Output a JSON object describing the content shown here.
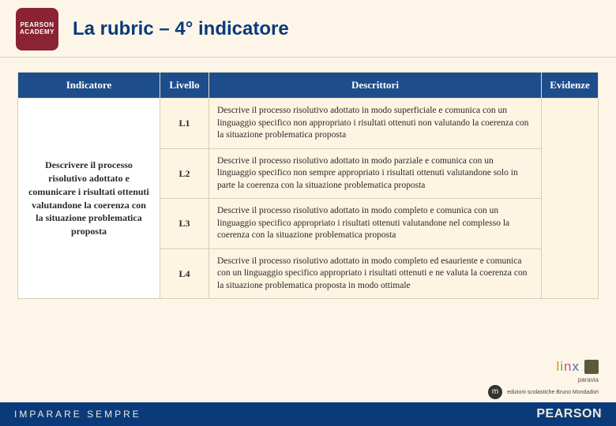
{
  "header": {
    "logo_line1": "PEARSON",
    "logo_line2": "ACADEMY",
    "title": "La rubric – 4° indicatore"
  },
  "table": {
    "headers": {
      "indicatore": "Indicatore",
      "livello": "Livello",
      "descrittori": "Descrittori",
      "evidenze": "Evidenze"
    },
    "indicatore_text": "Descrivere il processo risolutivo adottato e comunicare i risultati ottenuti valutandone la coerenza con la situazione problematica proposta",
    "rows": [
      {
        "livello": "L1",
        "descrittore": "Descrive il processo risolutivo adottato in modo superficiale e comunica con un linguaggio specifico non appropriato i risultati ottenuti non valutando la coerenza con la situazione problematica proposta"
      },
      {
        "livello": "L2",
        "descrittore": "Descrive il processo risolutivo adottato in modo parziale e comunica con un linguaggio specifico non sempre appropriato i risultati ottenuti valutandone solo in parte la coerenza con la situazione problematica proposta"
      },
      {
        "livello": "L3",
        "descrittore": "Descrive il processo risolutivo adottato in modo completo e comunica con un linguaggio specifico appropriato i risultati ottenuti valutandone nel complesso la coerenza con la situazione problematica proposta"
      },
      {
        "livello": "L4",
        "descrittore": "Descrive il processo risolutivo adottato in modo completo ed esauriente e comunica con un linguaggio specifico appropriato i risultati ottenuti e ne valuta la coerenza con la situazione problematica proposta in modo ottimale"
      }
    ]
  },
  "brands": {
    "linx": "linx",
    "paravia": "paravia",
    "mondadori": "edizioni scolastiche Bruno Mondadori"
  },
  "footer": {
    "left": "IMPARARE SEMPRE",
    "right": "PEARSON"
  },
  "colors": {
    "header_bg": "#1d4d8a",
    "page_bg": "#fdf6e8",
    "cell_bg": "#fdf4e2",
    "logo_bg": "#8a2332",
    "title_color": "#0a3a7a",
    "footer_bg": "#0a3a7a"
  }
}
